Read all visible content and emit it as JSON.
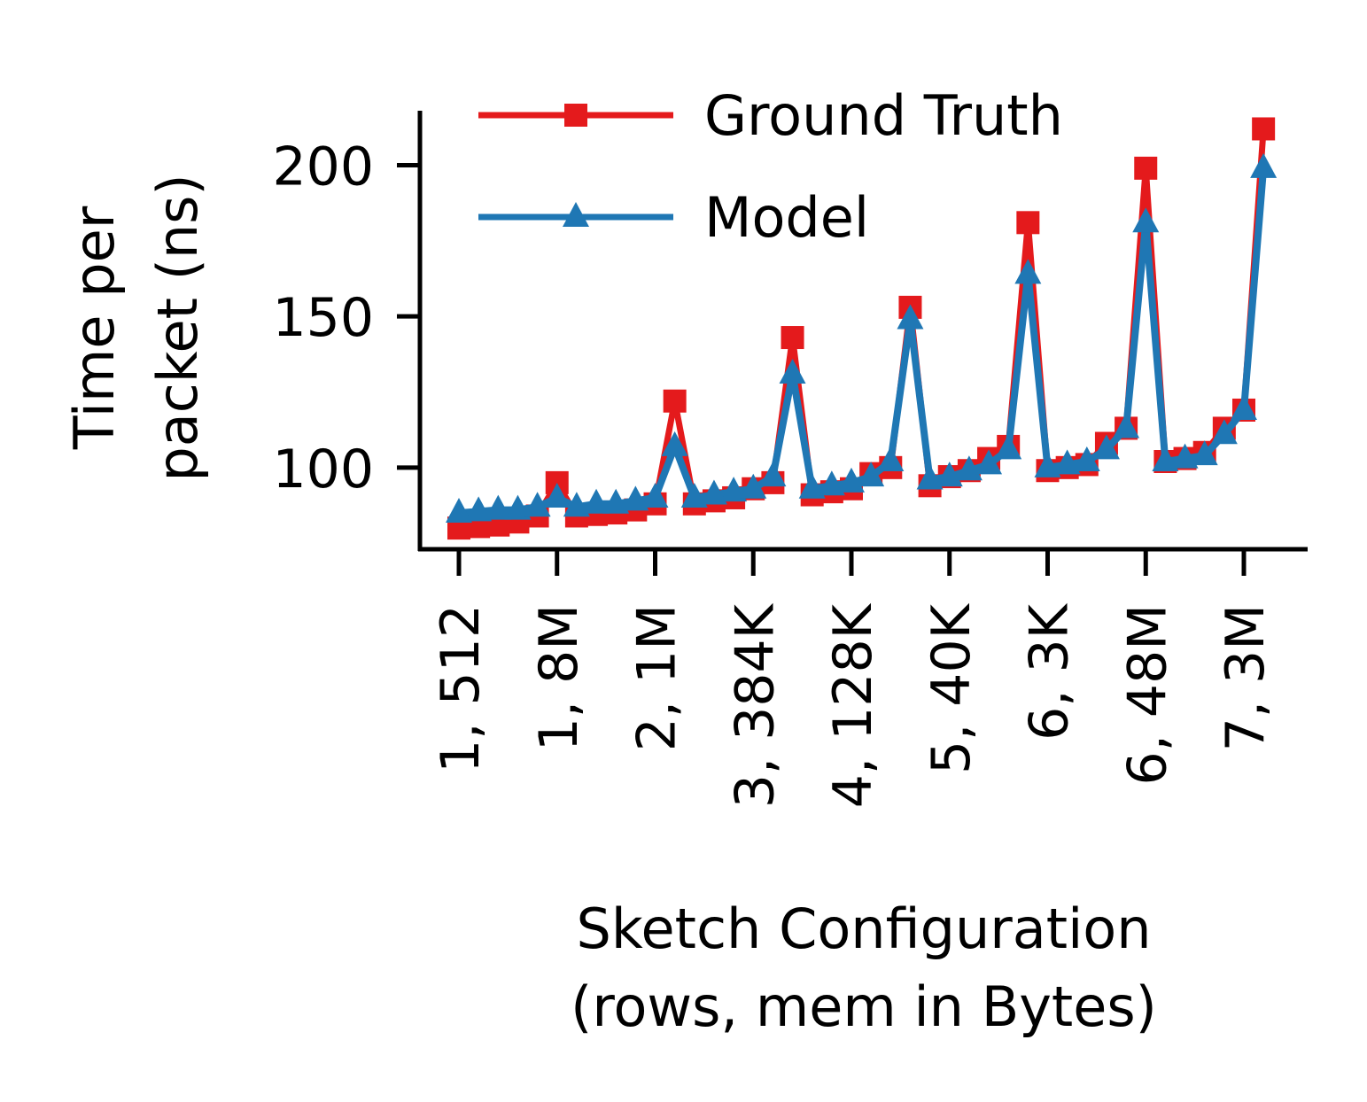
{
  "chart_data": {
    "type": "line",
    "title": "",
    "xlabel_lines": [
      "Sketch Configuration",
      "(rows, mem in Bytes)"
    ],
    "ylabel_lines": [
      "Time per",
      "packet (ns)"
    ],
    "ylim": [
      73,
      218
    ],
    "yticks": [
      100,
      150,
      200
    ],
    "xtick_labels": [
      "1, 512",
      "1, 8M",
      "2, 1M",
      "3, 384K",
      "4, 128K",
      "5, 40K",
      "6, 3K",
      "6, 48M",
      "7, 3M"
    ],
    "xtick_positions": [
      0,
      5,
      10,
      15,
      20,
      25,
      30,
      35,
      40
    ],
    "grid": false,
    "legend_position": "top-left",
    "series": [
      {
        "name": "Ground Truth",
        "color": "#e41a1c",
        "marker": "square",
        "values": [
          80,
          80.5,
          81,
          82,
          84,
          95,
          84,
          84.5,
          85,
          86,
          88,
          122,
          88,
          89,
          90,
          93,
          95,
          143,
          91,
          92,
          93,
          98,
          100,
          153,
          94,
          97,
          99,
          103,
          107,
          181,
          99,
          100,
          101,
          108,
          113,
          199,
          102,
          103,
          105,
          113,
          119,
          212
        ]
      },
      {
        "name": "Model",
        "color": "#1f77b4",
        "marker": "triangle",
        "values": [
          85,
          85.5,
          86,
          86,
          87,
          90,
          87,
          88,
          88,
          89,
          90,
          107,
          90,
          91,
          92,
          93,
          97,
          131,
          93,
          94,
          95,
          97,
          102,
          149,
          96,
          97,
          99,
          101,
          106,
          164,
          100,
          101,
          102,
          106,
          113,
          181,
          102,
          103,
          104,
          111,
          119,
          199
        ]
      }
    ]
  }
}
